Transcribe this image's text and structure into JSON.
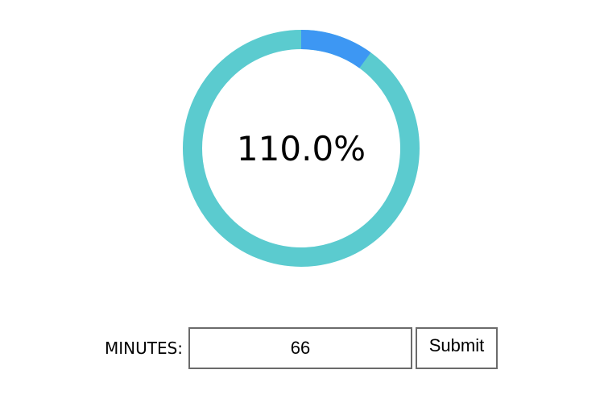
{
  "progress": {
    "percent_text": "110.0%",
    "value": 1.1,
    "track_color": "#5bcbcf",
    "overflow_color": "#3d97f3"
  },
  "form": {
    "minutes_label": "MINUTES:",
    "minutes_value": "66",
    "submit_label": "Submit"
  }
}
